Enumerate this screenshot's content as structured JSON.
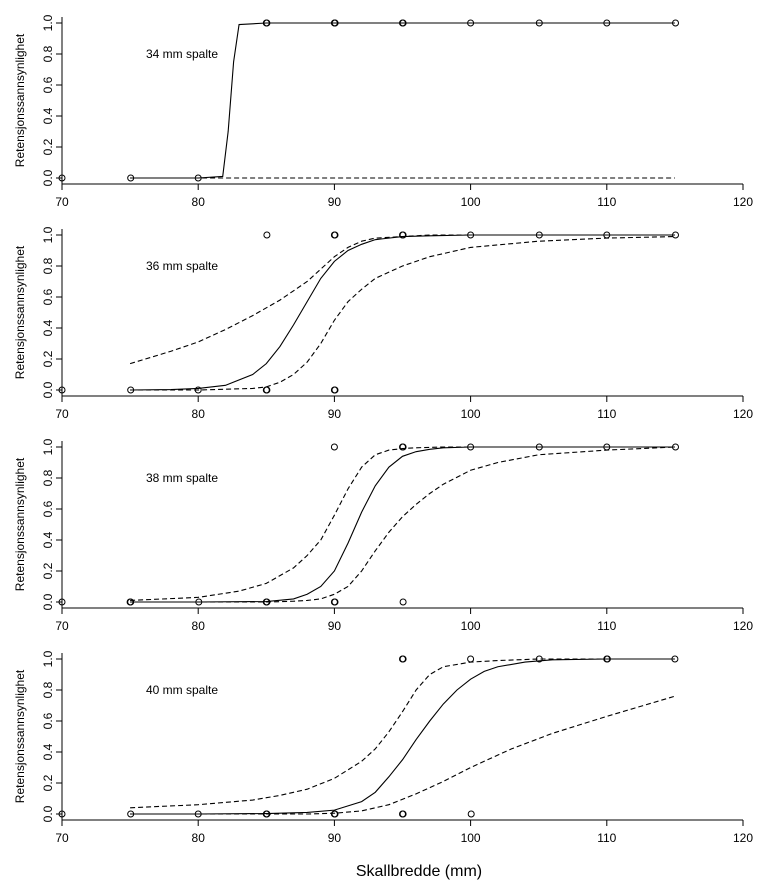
{
  "figure": {
    "xlabel": "Skallbredde (mm)"
  },
  "chart_data": [
    {
      "type": "line",
      "title": "",
      "annotation": "34 mm spalte",
      "ylabel": "Retensjonssannsynlighet",
      "xlim": [
        70,
        120
      ],
      "ylim": [
        0,
        1
      ],
      "xticks": [
        70,
        80,
        90,
        100,
        110,
        120
      ],
      "yticks": [
        0.0,
        0.2,
        0.4,
        0.6,
        0.8,
        1.0
      ],
      "ytick_labels": [
        "0.0",
        "0.2",
        "0.4",
        "0.6",
        "0.8",
        "1.0"
      ],
      "fit": {
        "x": [
          75,
          80,
          81.8,
          82.2,
          82.6,
          83,
          85,
          90,
          95,
          100,
          105,
          110,
          115
        ],
        "y": [
          0,
          0,
          0.01,
          0.3,
          0.75,
          0.99,
          1,
          1,
          1,
          1,
          1,
          1,
          1
        ]
      },
      "ci_lower": {
        "x": [
          75,
          115
        ],
        "y": [
          0,
          0
        ]
      },
      "ci_upper": null,
      "points": [
        {
          "x": 70,
          "y": 0
        },
        {
          "x": 75,
          "y": 0
        },
        {
          "x": 80,
          "y": 0
        },
        {
          "x": 85,
          "y": 1
        },
        {
          "x": 85,
          "y": 1
        },
        {
          "x": 90,
          "y": 1
        },
        {
          "x": 90,
          "y": 1
        },
        {
          "x": 90,
          "y": 1
        },
        {
          "x": 95,
          "y": 1
        },
        {
          "x": 95,
          "y": 1
        },
        {
          "x": 100,
          "y": 1
        },
        {
          "x": 105,
          "y": 1
        },
        {
          "x": 110,
          "y": 1
        },
        {
          "x": 115,
          "y": 1
        }
      ]
    },
    {
      "type": "line",
      "title": "",
      "annotation": "36 mm spalte",
      "ylabel": "Retensjonssannsynlighet",
      "xlim": [
        70,
        120
      ],
      "ylim": [
        0,
        1
      ],
      "xticks": [
        70,
        80,
        90,
        100,
        110,
        120
      ],
      "yticks": [
        0.0,
        0.2,
        0.4,
        0.6,
        0.8,
        1.0
      ],
      "ytick_labels": [
        "0.0",
        "0.2",
        "0.4",
        "0.6",
        "0.8",
        "1.0"
      ],
      "fit": {
        "x": [
          75,
          78,
          80,
          82,
          84,
          85,
          86,
          87,
          88,
          89,
          90,
          91,
          92,
          93,
          95,
          97,
          100,
          105,
          110,
          115
        ],
        "y": [
          0,
          0.003,
          0.01,
          0.03,
          0.1,
          0.17,
          0.28,
          0.42,
          0.57,
          0.72,
          0.83,
          0.9,
          0.94,
          0.97,
          0.99,
          0.995,
          1,
          1,
          1,
          1
        ]
      },
      "ci_lower": {
        "x": [
          75,
          80,
          84,
          85,
          86,
          87,
          88,
          89,
          90,
          91,
          92,
          93,
          95,
          97,
          100,
          105,
          110,
          115
        ],
        "y": [
          0,
          0,
          0.01,
          0.02,
          0.05,
          0.1,
          0.18,
          0.3,
          0.45,
          0.57,
          0.65,
          0.72,
          0.8,
          0.86,
          0.92,
          0.96,
          0.98,
          0.99
        ]
      },
      "ci_upper": {
        "x": [
          75,
          78,
          80,
          82,
          84,
          86,
          88,
          89,
          90,
          91,
          92,
          93,
          95,
          97,
          100,
          105,
          110,
          115
        ],
        "y": [
          0.17,
          0.25,
          0.31,
          0.39,
          0.48,
          0.58,
          0.7,
          0.78,
          0.86,
          0.92,
          0.96,
          0.98,
          0.99,
          1,
          1,
          1,
          1,
          1
        ]
      },
      "points": [
        {
          "x": 70,
          "y": 0
        },
        {
          "x": 75,
          "y": 0
        },
        {
          "x": 80,
          "y": 0
        },
        {
          "x": 85,
          "y": 0
        },
        {
          "x": 85,
          "y": 0
        },
        {
          "x": 85,
          "y": 1
        },
        {
          "x": 90,
          "y": 0
        },
        {
          "x": 90,
          "y": 0
        },
        {
          "x": 90,
          "y": 1
        },
        {
          "x": 90,
          "y": 1
        },
        {
          "x": 95,
          "y": 1
        },
        {
          "x": 95,
          "y": 1
        },
        {
          "x": 100,
          "y": 1
        },
        {
          "x": 105,
          "y": 1
        },
        {
          "x": 110,
          "y": 1
        },
        {
          "x": 115,
          "y": 1
        }
      ]
    },
    {
      "type": "line",
      "title": "",
      "annotation": "38 mm spalte",
      "ylabel": "Retensjonssannsynlighet",
      "xlim": [
        70,
        120
      ],
      "ylim": [
        0,
        1
      ],
      "xticks": [
        70,
        80,
        90,
        100,
        110,
        120
      ],
      "yticks": [
        0.0,
        0.2,
        0.4,
        0.6,
        0.8,
        1.0
      ],
      "ytick_labels": [
        "0.0",
        "0.2",
        "0.4",
        "0.6",
        "0.8",
        "1.0"
      ],
      "fit": {
        "x": [
          75,
          80,
          85,
          87,
          88,
          89,
          90,
          91,
          92,
          93,
          94,
          95,
          96,
          97,
          98,
          100,
          105,
          110,
          115
        ],
        "y": [
          0,
          0,
          0.003,
          0.02,
          0.05,
          0.1,
          0.2,
          0.38,
          0.58,
          0.75,
          0.87,
          0.94,
          0.97,
          0.985,
          0.995,
          1,
          1,
          1,
          1
        ]
      },
      "ci_lower": {
        "x": [
          75,
          80,
          85,
          87,
          88,
          89,
          90,
          91,
          92,
          93,
          94,
          95,
          96,
          97,
          98,
          100,
          102,
          105,
          110,
          115
        ],
        "y": [
          0,
          0,
          0,
          0.005,
          0.01,
          0.02,
          0.05,
          0.1,
          0.2,
          0.33,
          0.45,
          0.55,
          0.63,
          0.7,
          0.76,
          0.85,
          0.9,
          0.95,
          0.98,
          1
        ]
      },
      "ci_upper": {
        "x": [
          75,
          80,
          83,
          85,
          87,
          88,
          89,
          90,
          91,
          92,
          93,
          94,
          95,
          96,
          98,
          100,
          105,
          110,
          115
        ],
        "y": [
          0.01,
          0.03,
          0.07,
          0.12,
          0.22,
          0.3,
          0.4,
          0.56,
          0.73,
          0.87,
          0.95,
          0.98,
          0.99,
          0.995,
          1,
          1,
          1,
          1,
          1
        ]
      },
      "points": [
        {
          "x": 70,
          "y": 0
        },
        {
          "x": 75,
          "y": 0
        },
        {
          "x": 75,
          "y": 0
        },
        {
          "x": 80,
          "y": 0
        },
        {
          "x": 85,
          "y": 0
        },
        {
          "x": 85,
          "y": 0
        },
        {
          "x": 90,
          "y": 0
        },
        {
          "x": 90,
          "y": 0
        },
        {
          "x": 90,
          "y": 1
        },
        {
          "x": 95,
          "y": 0
        },
        {
          "x": 95,
          "y": 1
        },
        {
          "x": 95,
          "y": 1
        },
        {
          "x": 100,
          "y": 1
        },
        {
          "x": 105,
          "y": 1
        },
        {
          "x": 110,
          "y": 1
        },
        {
          "x": 115,
          "y": 1
        }
      ]
    },
    {
      "type": "line",
      "title": "",
      "annotation": "40 mm spalte",
      "ylabel": "Retensjonssannsynlighet",
      "xlim": [
        70,
        120
      ],
      "ylim": [
        0,
        1
      ],
      "xticks": [
        70,
        80,
        90,
        100,
        110,
        120
      ],
      "yticks": [
        0.0,
        0.2,
        0.4,
        0.6,
        0.8,
        1.0
      ],
      "ytick_labels": [
        "0.0",
        "0.2",
        "0.4",
        "0.6",
        "0.8",
        "1.0"
      ],
      "fit": {
        "x": [
          75,
          80,
          85,
          88,
          90,
          92,
          93,
          94,
          95,
          96,
          97,
          98,
          99,
          100,
          101,
          102,
          104,
          106,
          110,
          115
        ],
        "y": [
          0,
          0,
          0.003,
          0.01,
          0.025,
          0.08,
          0.14,
          0.24,
          0.35,
          0.48,
          0.6,
          0.71,
          0.8,
          0.87,
          0.92,
          0.95,
          0.98,
          0.995,
          1,
          1
        ]
      },
      "ci_lower": {
        "x": [
          75,
          80,
          85,
          88,
          90,
          92,
          94,
          96,
          98,
          100,
          103,
          106,
          110,
          115
        ],
        "y": [
          0,
          0,
          0,
          0,
          0.005,
          0.02,
          0.06,
          0.13,
          0.21,
          0.3,
          0.42,
          0.52,
          0.63,
          0.76
        ]
      },
      "ci_upper": {
        "x": [
          75,
          80,
          84,
          86,
          88,
          90,
          92,
          93,
          94,
          95,
          96,
          97,
          98,
          100,
          102,
          105,
          110,
          115
        ],
        "y": [
          0.04,
          0.06,
          0.09,
          0.12,
          0.16,
          0.23,
          0.34,
          0.42,
          0.53,
          0.66,
          0.8,
          0.9,
          0.95,
          0.98,
          0.99,
          1,
          1,
          1
        ]
      },
      "points": [
        {
          "x": 70,
          "y": 0
        },
        {
          "x": 75,
          "y": 0
        },
        {
          "x": 80,
          "y": 0
        },
        {
          "x": 85,
          "y": 0
        },
        {
          "x": 85,
          "y": 0
        },
        {
          "x": 90,
          "y": 0
        },
        {
          "x": 90,
          "y": 0
        },
        {
          "x": 95,
          "y": 0
        },
        {
          "x": 95,
          "y": 0
        },
        {
          "x": 95,
          "y": 1
        },
        {
          "x": 95,
          "y": 1
        },
        {
          "x": 100,
          "y": 0
        },
        {
          "x": 100,
          "y": 1
        },
        {
          "x": 105,
          "y": 1
        },
        {
          "x": 110,
          "y": 1
        },
        {
          "x": 110,
          "y": 1
        },
        {
          "x": 115,
          "y": 1
        }
      ]
    }
  ]
}
